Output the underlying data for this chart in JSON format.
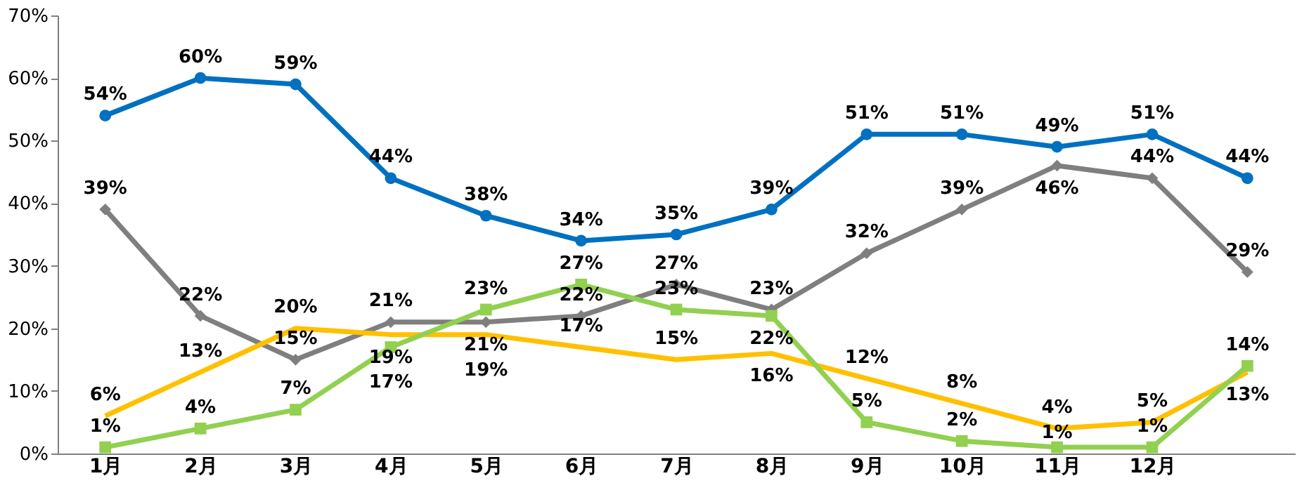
{
  "chart_data": {
    "type": "line",
    "categories": [
      "1月",
      "2月",
      "3月",
      "4月",
      "5月",
      "6月",
      "7月",
      "8月",
      "9月",
      "10月",
      "11月",
      "12月",
      null
    ],
    "ylim": [
      0,
      70
    ],
    "yticks": [
      {
        "value": 0,
        "label": "0%"
      },
      {
        "value": 10,
        "label": "10%"
      },
      {
        "value": 20,
        "label": "20%"
      },
      {
        "value": 30,
        "label": "30%"
      },
      {
        "value": 40,
        "label": "40%"
      },
      {
        "value": 50,
        "label": "50%"
      },
      {
        "value": 60,
        "label": "60%"
      },
      {
        "value": 70,
        "label": "70%"
      }
    ],
    "grid": false,
    "legend": false,
    "line_style": "solid",
    "series": [
      {
        "color": "#0070c0",
        "marker": "circle",
        "values": [
          54,
          60,
          59,
          44,
          38,
          34,
          35,
          39,
          51,
          51,
          49,
          51,
          44
        ],
        "value_labels": [
          "54%",
          "60%",
          "59%",
          "44%",
          "38%",
          "34%",
          "35%",
          "39%",
          "51%",
          "51%",
          "49%",
          "51%",
          "44%"
        ]
      },
      {
        "color": "#7f7f7f",
        "marker": "diamond",
        "values": [
          39,
          22,
          15,
          21,
          21,
          22,
          27,
          23,
          32,
          39,
          46,
          44,
          29
        ],
        "value_labels": [
          "39%",
          "22%",
          "15%",
          "21%",
          "21%",
          "22%",
          "27%",
          "23%",
          "32%",
          "39%",
          "46%",
          "44%",
          "29%"
        ]
      },
      {
        "color": "#ffc000",
        "marker": "none",
        "values": [
          6,
          13,
          20,
          19,
          19,
          17,
          15,
          16,
          12,
          8,
          4,
          5,
          13
        ],
        "value_labels": [
          "6%",
          "13%",
          "20%",
          "19%",
          "19%",
          "17%",
          "15%",
          "16%",
          "12%",
          "8%",
          "4%",
          "5%",
          "13%"
        ]
      },
      {
        "color": "#92d050",
        "marker": "square",
        "values": [
          1,
          4,
          7,
          17,
          23,
          27,
          23,
          22,
          5,
          2,
          1,
          1,
          14
        ],
        "value_labels": [
          "1%",
          "4%",
          "7%",
          "17%",
          "23%",
          "27%",
          "23%",
          "22%",
          "5%",
          "2%",
          "1%",
          "1%",
          "14%"
        ]
      }
    ]
  }
}
